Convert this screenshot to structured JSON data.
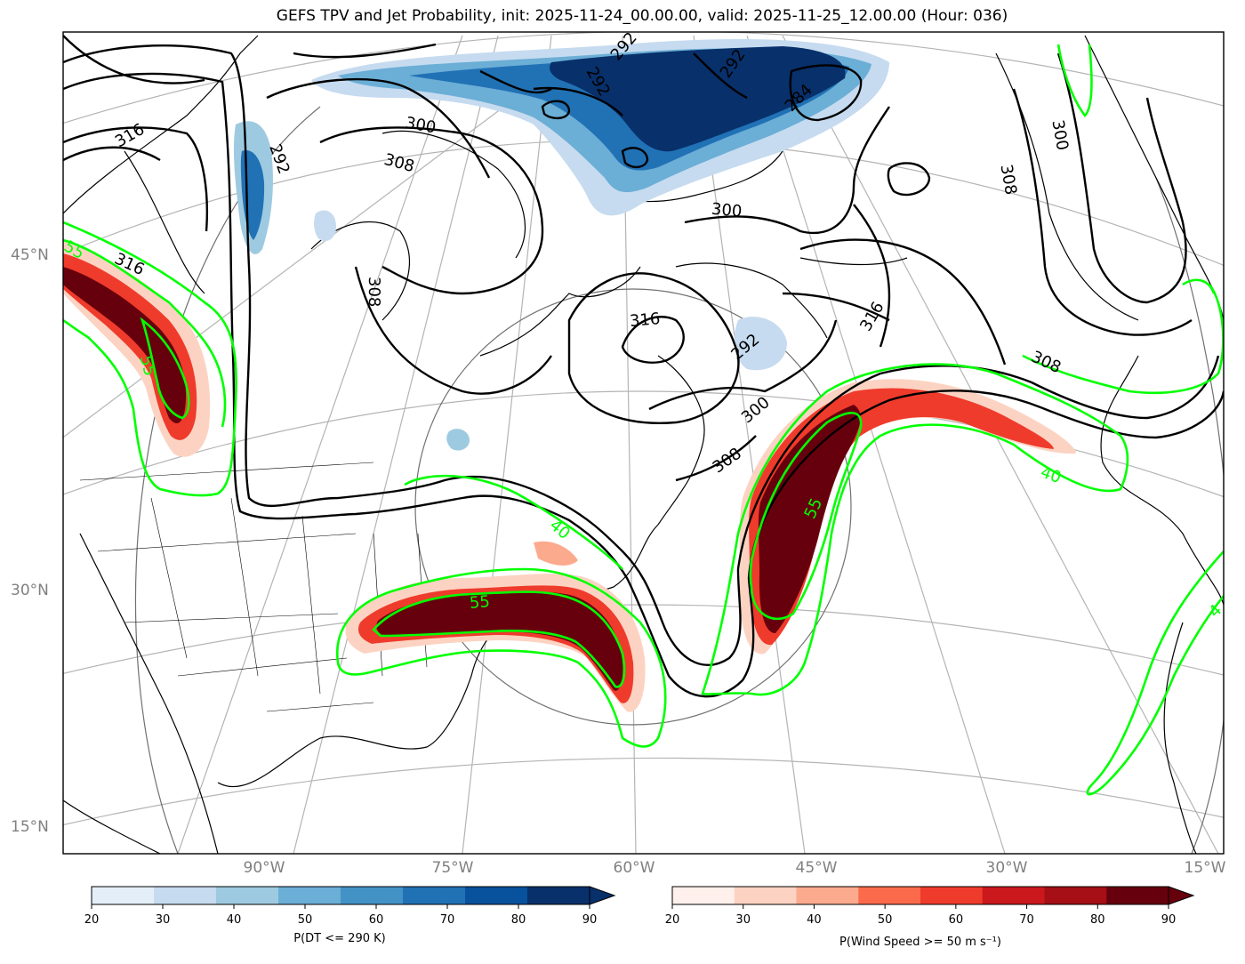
{
  "title": "GEFS TPV and Jet Probability, init: 2025-11-24_00.00.00, valid: 2025-11-25_12.00.00 (Hour: 036)",
  "lat_labels": [
    "45°N",
    "30°N",
    "15°N"
  ],
  "lon_labels": [
    "90°W",
    "75°W",
    "60°W",
    "45°W",
    "30°W",
    "15°W"
  ],
  "colorbars": {
    "dt": {
      "label": "P(DT <= 290 K)",
      "ticks": [
        "20",
        "30",
        "40",
        "50",
        "60",
        "70",
        "80",
        "90"
      ],
      "colors": [
        "#e4eef8",
        "#c6dbef",
        "#9ecae1",
        "#6baed6",
        "#4292c6",
        "#2171b5",
        "#08519c",
        "#08306b"
      ]
    },
    "wind": {
      "label": "P(Wind Speed >= 50 m s⁻¹)",
      "ticks": [
        "20",
        "30",
        "40",
        "50",
        "60",
        "70",
        "80",
        "90"
      ],
      "colors": [
        "#fff0ec",
        "#fcd3c2",
        "#fcaa8e",
        "#fb6a4a",
        "#ef3b2c",
        "#cb181d",
        "#a50f15",
        "#67000d"
      ]
    }
  },
  "contour_labels": {
    "theta": [
      "292",
      "292",
      "284",
      "292",
      "300",
      "308",
      "316",
      "292",
      "308",
      "300",
      "316",
      "316",
      "292",
      "300",
      "308",
      "316",
      "308",
      "300",
      "308"
    ],
    "wind": [
      "55",
      "55",
      "55",
      "55",
      "40",
      "40",
      "4"
    ]
  }
}
